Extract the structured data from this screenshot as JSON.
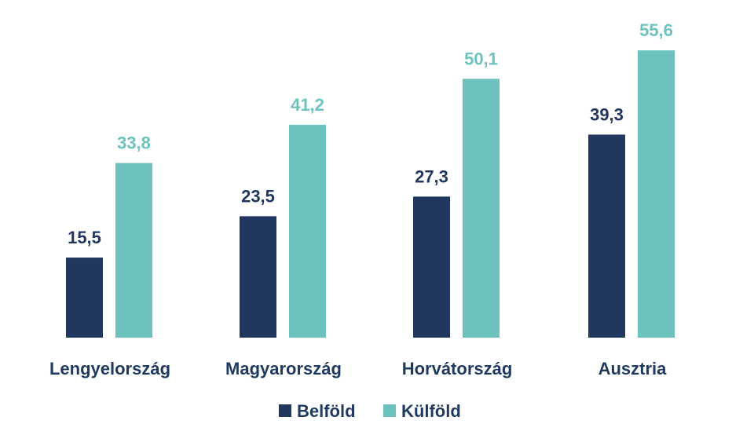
{
  "chart_data": {
    "type": "bar",
    "categories": [
      "Lengyelország",
      "Magyarország",
      "Horvátország",
      "Ausztria"
    ],
    "series": [
      {
        "name": "Belföld",
        "color": "#22375f",
        "values": [
          15.5,
          23.5,
          27.3,
          39.3
        ],
        "labels": [
          "15,5",
          "23,5",
          "27,3",
          "39,3"
        ]
      },
      {
        "name": "Külföld",
        "color": "#6cc3be",
        "values": [
          33.8,
          41.2,
          50.1,
          55.6
        ],
        "labels": [
          "33,8",
          "41,2",
          "50,1",
          "55,6"
        ]
      }
    ],
    "title": "",
    "xlabel": "",
    "ylabel": "",
    "ylim": [
      0,
      60
    ],
    "grid": false,
    "legend_position": "bottom"
  }
}
